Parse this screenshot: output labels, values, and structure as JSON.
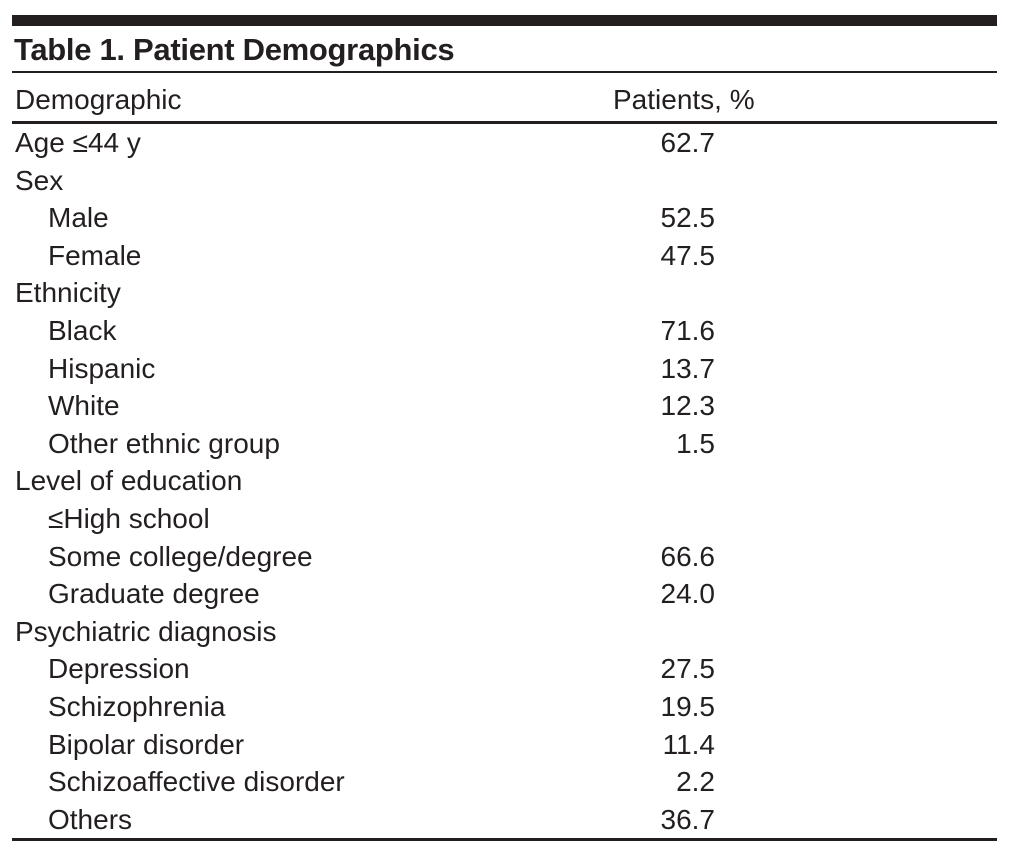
{
  "table": {
    "title": "Table 1. Patient Demographics",
    "columns": [
      "Demographic",
      "Patients, %"
    ],
    "rows": [
      {
        "label": "Age ≤44 y",
        "value": "62.7",
        "indent": false
      },
      {
        "label": "Sex",
        "value": "",
        "indent": false
      },
      {
        "label": "Male",
        "value": "52.5",
        "indent": true
      },
      {
        "label": "Female",
        "value": "47.5",
        "indent": true
      },
      {
        "label": "Ethnicity",
        "value": "",
        "indent": false
      },
      {
        "label": "Black",
        "value": "71.6",
        "indent": true
      },
      {
        "label": "Hispanic",
        "value": "13.7",
        "indent": true
      },
      {
        "label": "White",
        "value": "12.3",
        "indent": true
      },
      {
        "label": "Other ethnic group",
        "value": "1.5",
        "indent": true
      },
      {
        "label": "Level of education",
        "value": "",
        "indent": false
      },
      {
        "label": "≤High school",
        "value": "",
        "indent": true
      },
      {
        "label": "Some college/degree",
        "value": "66.6",
        "indent": true
      },
      {
        "label": "Graduate degree",
        "value": "24.0",
        "indent": true
      },
      {
        "label": "Psychiatric diagnosis",
        "value": "",
        "indent": false
      },
      {
        "label": "Depression",
        "value": "27.5",
        "indent": true
      },
      {
        "label": "Schizophrenia",
        "value": "19.5",
        "indent": true
      },
      {
        "label": "Bipolar disorder",
        "value": "11.4",
        "indent": true
      },
      {
        "label": "Schizoaffective disorder",
        "value": "2.2",
        "indent": true
      },
      {
        "label": "Others",
        "value": "36.7",
        "indent": true
      }
    ]
  },
  "colors": {
    "text": "#231F20",
    "rule": "#231F20"
  }
}
